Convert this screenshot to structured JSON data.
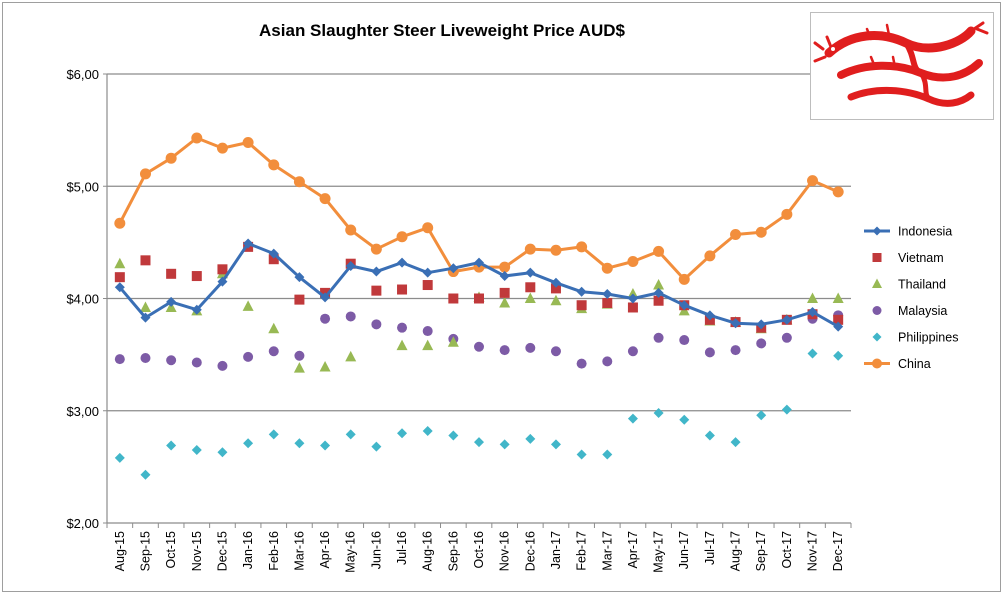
{
  "chart_data": {
    "type": "line",
    "title": "Asian Slaughter Steer Liveweight Price AUD$",
    "xlabel": "",
    "ylabel": "",
    "ylim": [
      2,
      6
    ],
    "yticks": [
      {
        "value": 2,
        "label": "$2,00"
      },
      {
        "value": 3,
        "label": "$3,00"
      },
      {
        "value": 4,
        "label": "$4,00"
      },
      {
        "value": 5,
        "label": "$5,00"
      },
      {
        "value": 6,
        "label": "$6,00"
      }
    ],
    "grid": "horizontal",
    "legend_position": "right",
    "categories": [
      "Aug-15",
      "Sep-15",
      "Oct-15",
      "Nov-15",
      "Dec-15",
      "Jan-16",
      "Feb-16",
      "Mar-16",
      "Apr-16",
      "May-16",
      "Jun-16",
      "Jul-16",
      "Aug-16",
      "Sep-16",
      "Oct-16",
      "Nov-16",
      "Dec-16",
      "Jan-17",
      "Feb-17",
      "Mar-17",
      "Apr-17",
      "May-17",
      "Jun-17",
      "Jul-17",
      "Aug-17",
      "Sep-17",
      "Oct-17",
      "Nov-17",
      "Dec-17"
    ],
    "series": [
      {
        "name": "Indonesia",
        "color": "#3a6fb5",
        "marker": "diamond",
        "line": true,
        "values": [
          4.1,
          3.83,
          3.97,
          3.9,
          4.15,
          4.49,
          4.4,
          4.19,
          4.01,
          4.29,
          4.24,
          4.32,
          4.23,
          4.27,
          4.32,
          4.2,
          4.23,
          4.14,
          4.06,
          4.04,
          4.0,
          4.05,
          3.94,
          3.85,
          3.78,
          3.77,
          3.81,
          3.88,
          3.75
        ]
      },
      {
        "name": "Vietnam",
        "color": "#c0393b",
        "marker": "square",
        "line": false,
        "values": [
          4.19,
          4.34,
          4.22,
          4.2,
          4.26,
          4.46,
          4.35,
          3.99,
          4.05,
          4.31,
          4.07,
          4.08,
          4.12,
          4.0,
          4.0,
          4.05,
          4.1,
          4.09,
          3.94,
          3.96,
          3.92,
          3.98,
          3.94,
          3.81,
          3.79,
          3.74,
          3.81,
          3.86,
          3.81
        ]
      },
      {
        "name": "Thailand",
        "color": "#98b954",
        "marker": "triangle",
        "line": false,
        "values": [
          4.31,
          3.92,
          3.92,
          3.89,
          4.22,
          3.93,
          3.73,
          3.38,
          3.39,
          3.48,
          null,
          3.58,
          3.58,
          3.61,
          4.01,
          3.96,
          4.0,
          3.98,
          3.91,
          3.95,
          4.04,
          4.12,
          3.89,
          3.8,
          3.79,
          3.73,
          3.81,
          4.0,
          4.0
        ]
      },
      {
        "name": "Malaysia",
        "color": "#7d5ba6",
        "marker": "circle",
        "line": false,
        "values": [
          3.46,
          3.47,
          3.45,
          3.43,
          3.4,
          3.48,
          3.53,
          3.49,
          3.82,
          3.84,
          3.77,
          3.74,
          3.71,
          3.64,
          3.57,
          3.54,
          3.56,
          3.53,
          3.42,
          3.44,
          3.53,
          3.65,
          3.63,
          3.52,
          3.54,
          3.6,
          3.65,
          3.82,
          3.85
        ]
      },
      {
        "name": "Philippines",
        "color": "#41b6c9",
        "marker": "diamond",
        "line": false,
        "values": [
          2.58,
          2.43,
          2.69,
          2.65,
          2.63,
          2.71,
          2.79,
          2.71,
          2.69,
          2.79,
          2.68,
          2.8,
          2.82,
          2.78,
          2.72,
          2.7,
          2.75,
          2.7,
          2.61,
          2.61,
          2.93,
          2.98,
          2.92,
          2.78,
          2.72,
          2.96,
          3.01,
          3.51,
          3.49
        ]
      },
      {
        "name": "China",
        "color": "#f28e3c",
        "marker": "circle",
        "line": true,
        "values": [
          4.67,
          5.11,
          5.25,
          5.43,
          5.34,
          5.39,
          5.19,
          5.04,
          4.89,
          4.61,
          4.44,
          4.55,
          4.63,
          4.24,
          4.28,
          4.28,
          4.44,
          4.43,
          4.46,
          4.27,
          4.33,
          4.42,
          4.17,
          4.38,
          4.57,
          4.59,
          4.75,
          5.05,
          4.95
        ]
      }
    ]
  }
}
